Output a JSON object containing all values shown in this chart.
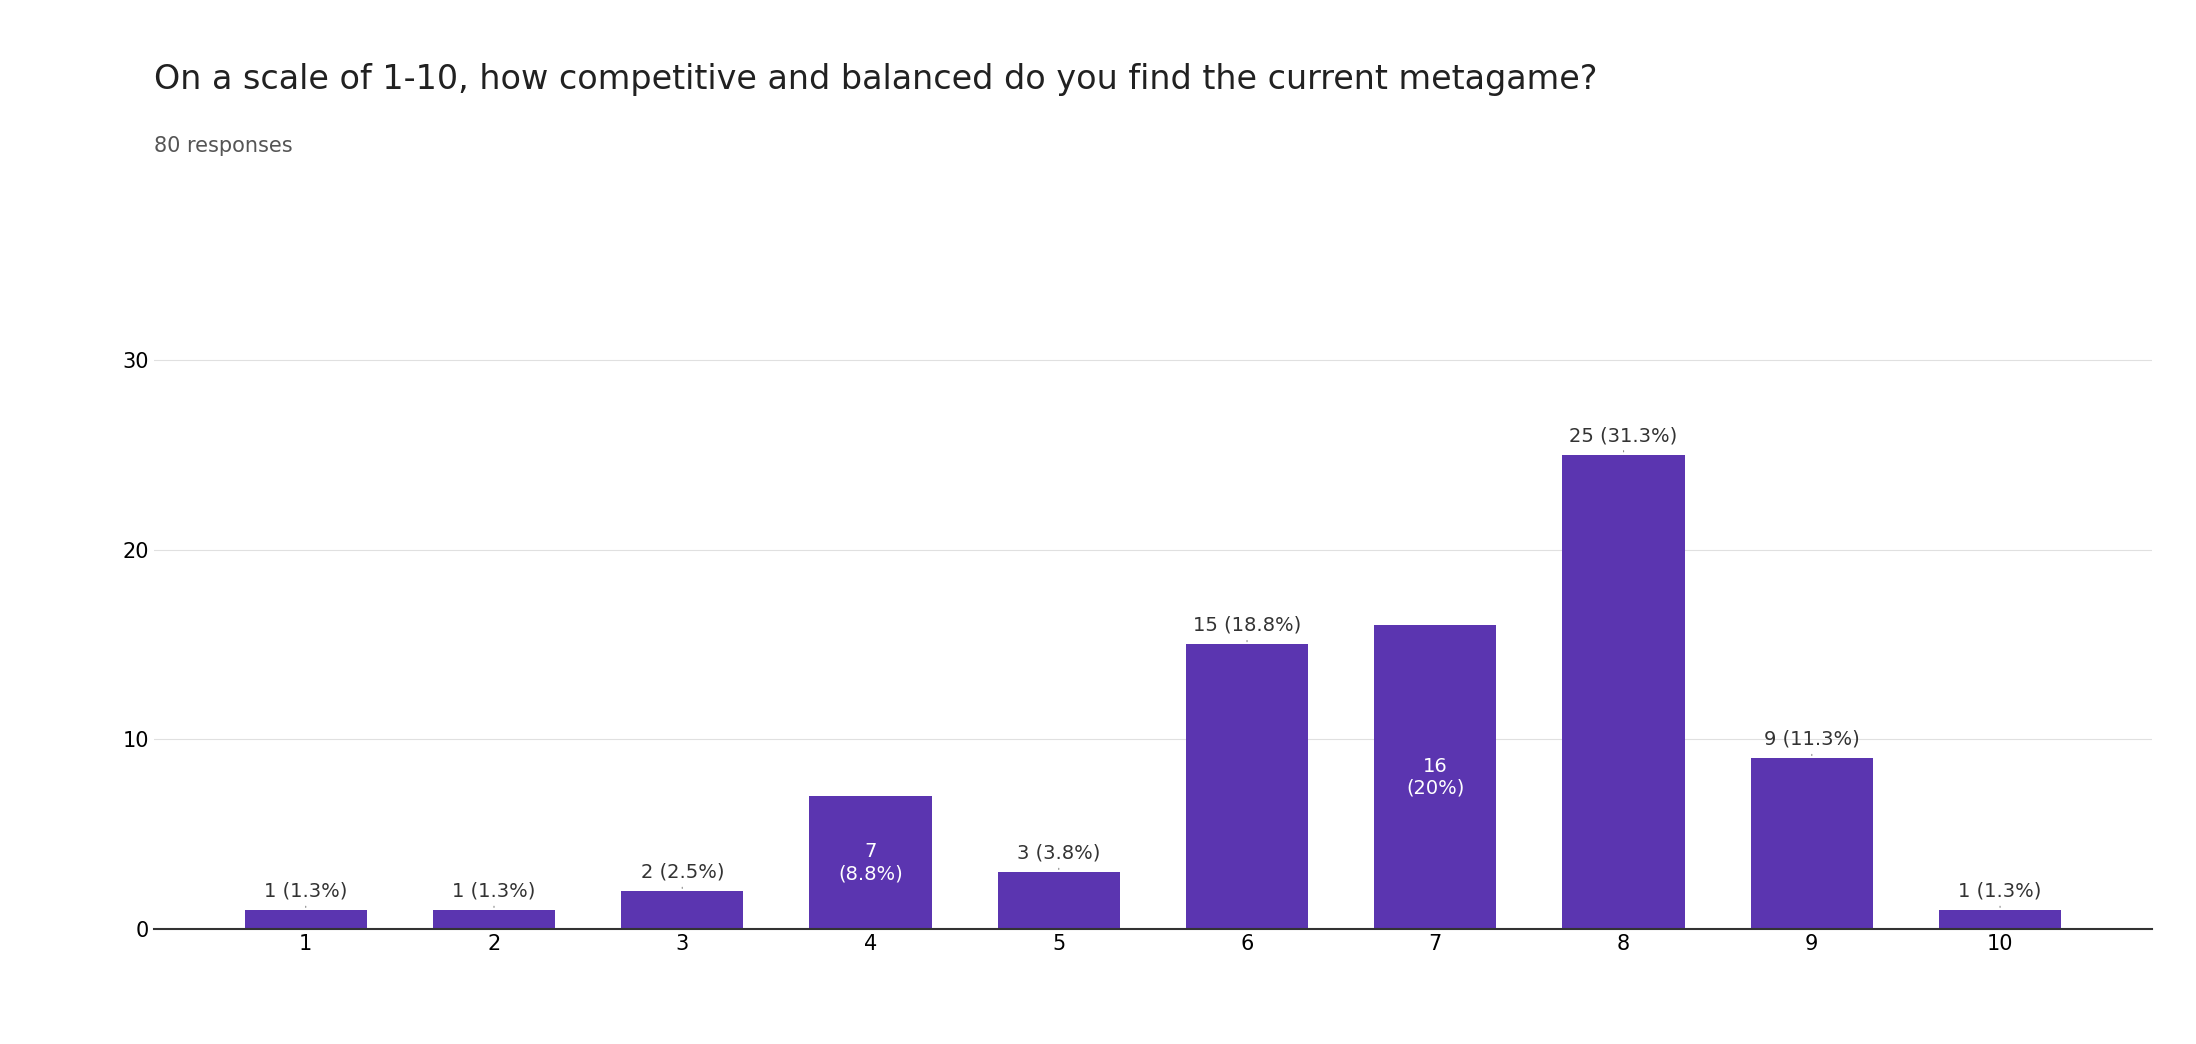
{
  "title": "On a scale of 1-10, how competitive and balanced do you find the current metagame?",
  "subtitle": "80 responses",
  "categories": [
    1,
    2,
    3,
    4,
    5,
    6,
    7,
    8,
    9,
    10
  ],
  "values": [
    1,
    1,
    2,
    7,
    3,
    15,
    16,
    25,
    9,
    1
  ],
  "labels": [
    "1 (1.3%)",
    "1 (1.3%)",
    "2 (2.5%)",
    "7\n(8.8%)",
    "3 (3.8%)",
    "15 (18.8%)",
    "16\n(20%)",
    "25 (31.3%)",
    "9 (11.3%)",
    "1 (1.3%)"
  ],
  "bar_color": "#5b35b0",
  "background_color": "#ffffff",
  "ylim": [
    0,
    33
  ],
  "yticks": [
    0,
    10,
    20,
    30
  ],
  "title_fontsize": 24,
  "subtitle_fontsize": 15,
  "label_fontsize": 14,
  "tick_fontsize": 15,
  "label_inside": [
    false,
    false,
    false,
    true,
    false,
    false,
    true,
    false,
    false,
    false
  ],
  "label_colors": [
    "#333333",
    "#333333",
    "#333333",
    "#ffffff",
    "#333333",
    "#333333",
    "#ffffff",
    "#333333",
    "#333333",
    "#333333"
  ]
}
